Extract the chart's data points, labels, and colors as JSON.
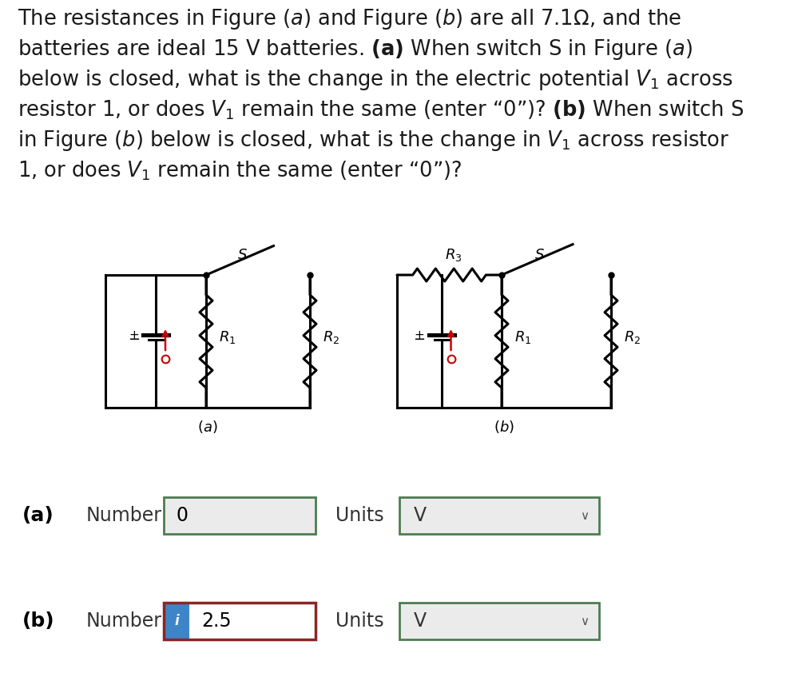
{
  "bg_color": "#ffffff",
  "text_color": "#1a1a1a",
  "para_lines": [
    "The resistances in Figure ($a$) and Figure ($b$) are all 7.1Ω, and the",
    "batteries are ideal 15 V batteries. $\\mathbf{(a)}$ When switch S in Figure ($a$)",
    "below is closed, what is the change in the electric potential $V_1$ across",
    "resistor 1, or does $V_1$ remain the same (enter “0”)? $\\mathbf{(b)}$ When switch S",
    "in Figure ($b$) below is closed, what is the change in $V_1$ across resistor",
    "1, or does $V_1$ remain the same (enter “0”)?"
  ],
  "fig_a_label": "$(a)$",
  "fig_b_label": "$(b)$",
  "answer_a_value": "0",
  "answer_b_value": "2.5",
  "units_value": "V",
  "green_border": "#4d7c52",
  "red_border": "#8b2525",
  "blue_i_color": "#3d85c8",
  "box_fill": "#ebebeb",
  "circuit_lw": 2.2,
  "resistor_amp": 8,
  "battery_plate_long": 16,
  "battery_plate_short": 9,
  "arrow_color": "#cc0000",
  "dot_color": "#cc0000"
}
